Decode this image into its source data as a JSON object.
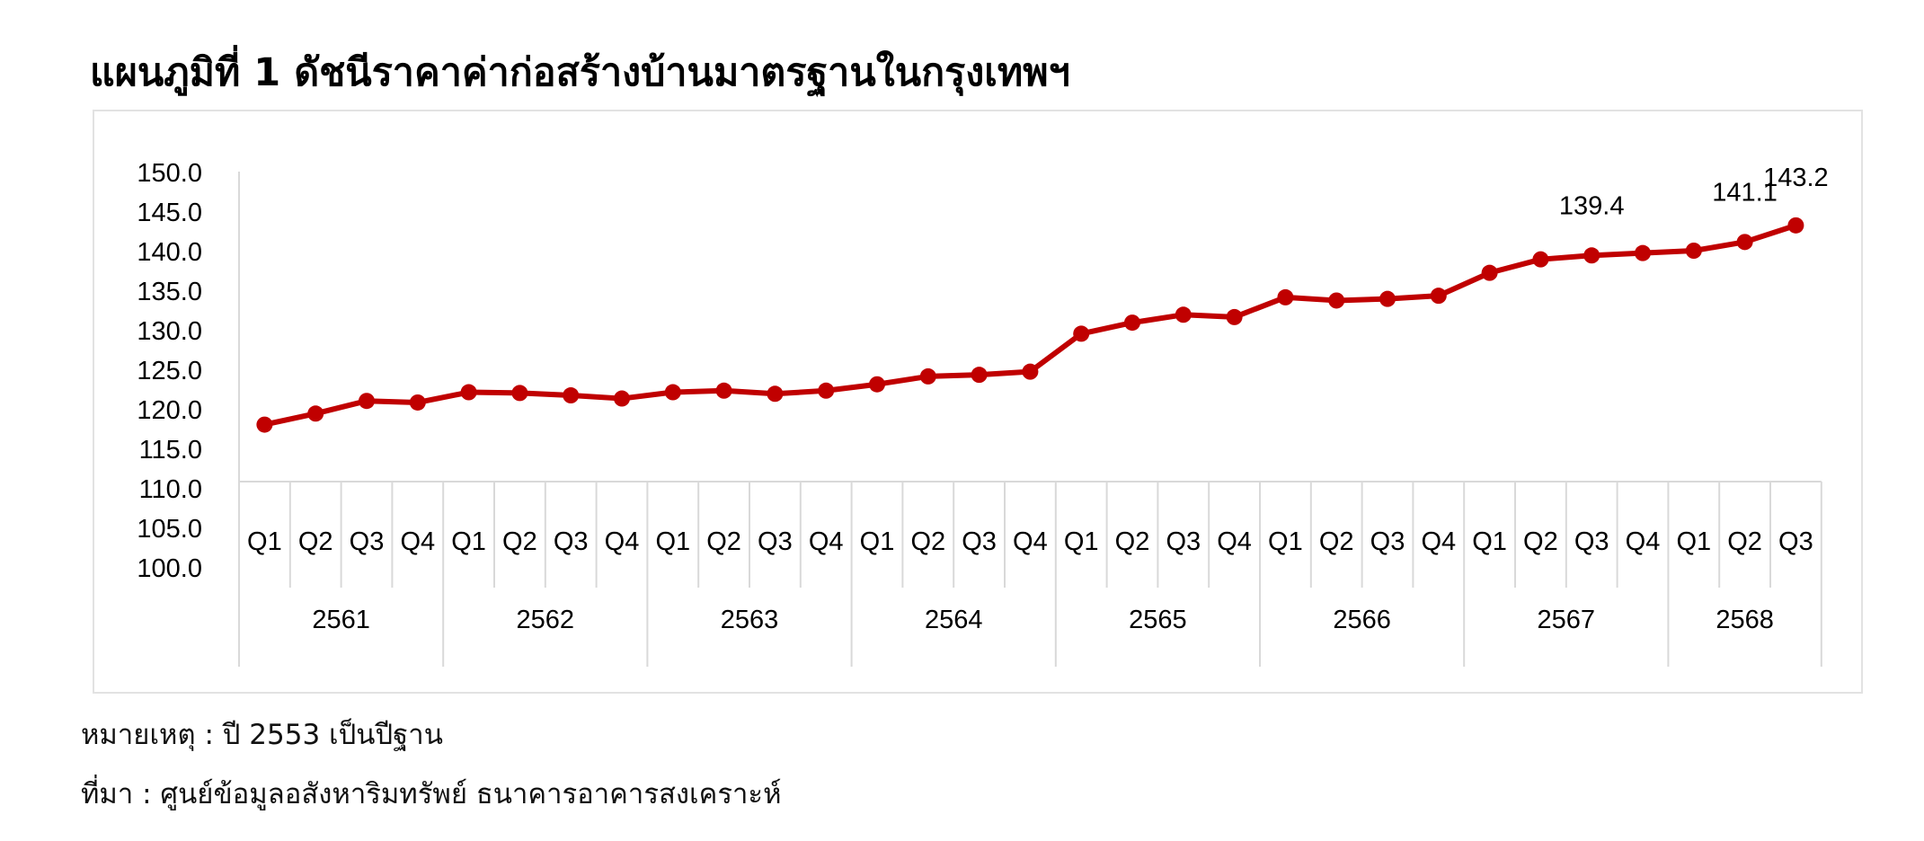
{
  "title": "แผนภูมิที่ 1 ดัชนีราคาค่าก่อสร้างบ้านมาตรฐานในกรุงเทพฯ",
  "footnotes": {
    "note": "หมายเหตุ : ปี 2553 เป็นปีฐาน",
    "source": "ที่มา : ศูนย์ข้อมูลอสังหาริมทรัพย์ ธนาคารอาคารสงเคราะห์"
  },
  "colors": {
    "line": "#C00000",
    "grid": "#d9d9d9",
    "frame": "#e2e2e2"
  },
  "chart_data": {
    "type": "line",
    "title": "",
    "xlabel": "",
    "ylabel": "",
    "ylim": [
      100,
      150
    ],
    "yticks": [
      "100.0",
      "105.0",
      "110.0",
      "115.0",
      "120.0",
      "125.0",
      "130.0",
      "135.0",
      "140.0",
      "145.0",
      "150.0"
    ],
    "years": [
      {
        "label": "2561",
        "quarters": [
          "Q1",
          "Q2",
          "Q3",
          "Q4"
        ]
      },
      {
        "label": "2562",
        "quarters": [
          "Q1",
          "Q2",
          "Q3",
          "Q4"
        ]
      },
      {
        "label": "2563",
        "quarters": [
          "Q1",
          "Q2",
          "Q3",
          "Q4"
        ]
      },
      {
        "label": "2564",
        "quarters": [
          "Q1",
          "Q2",
          "Q3",
          "Q4"
        ]
      },
      {
        "label": "2565",
        "quarters": [
          "Q1",
          "Q2",
          "Q3",
          "Q4"
        ]
      },
      {
        "label": "2566",
        "quarters": [
          "Q1",
          "Q2",
          "Q3",
          "Q4"
        ]
      },
      {
        "label": "2567",
        "quarters": [
          "Q1",
          "Q2",
          "Q3",
          "Q4"
        ]
      },
      {
        "label": "2568",
        "quarters": [
          "Q1",
          "Q2",
          "Q3"
        ]
      }
    ],
    "series": [
      {
        "values": [
          118.0,
          119.4,
          121.0,
          120.8,
          122.1,
          122.0,
          121.7,
          121.3,
          122.1,
          122.3,
          121.9,
          122.3,
          123.1,
          124.1,
          124.3,
          124.7,
          129.5,
          130.9,
          131.9,
          131.6,
          134.1,
          133.7,
          133.9,
          134.3,
          137.2,
          138.9,
          139.4,
          139.7,
          140.0,
          141.1,
          143.2
        ],
        "labels": {
          "26": "139.4",
          "29": "141.1",
          "30": "143.2"
        }
      }
    ]
  }
}
